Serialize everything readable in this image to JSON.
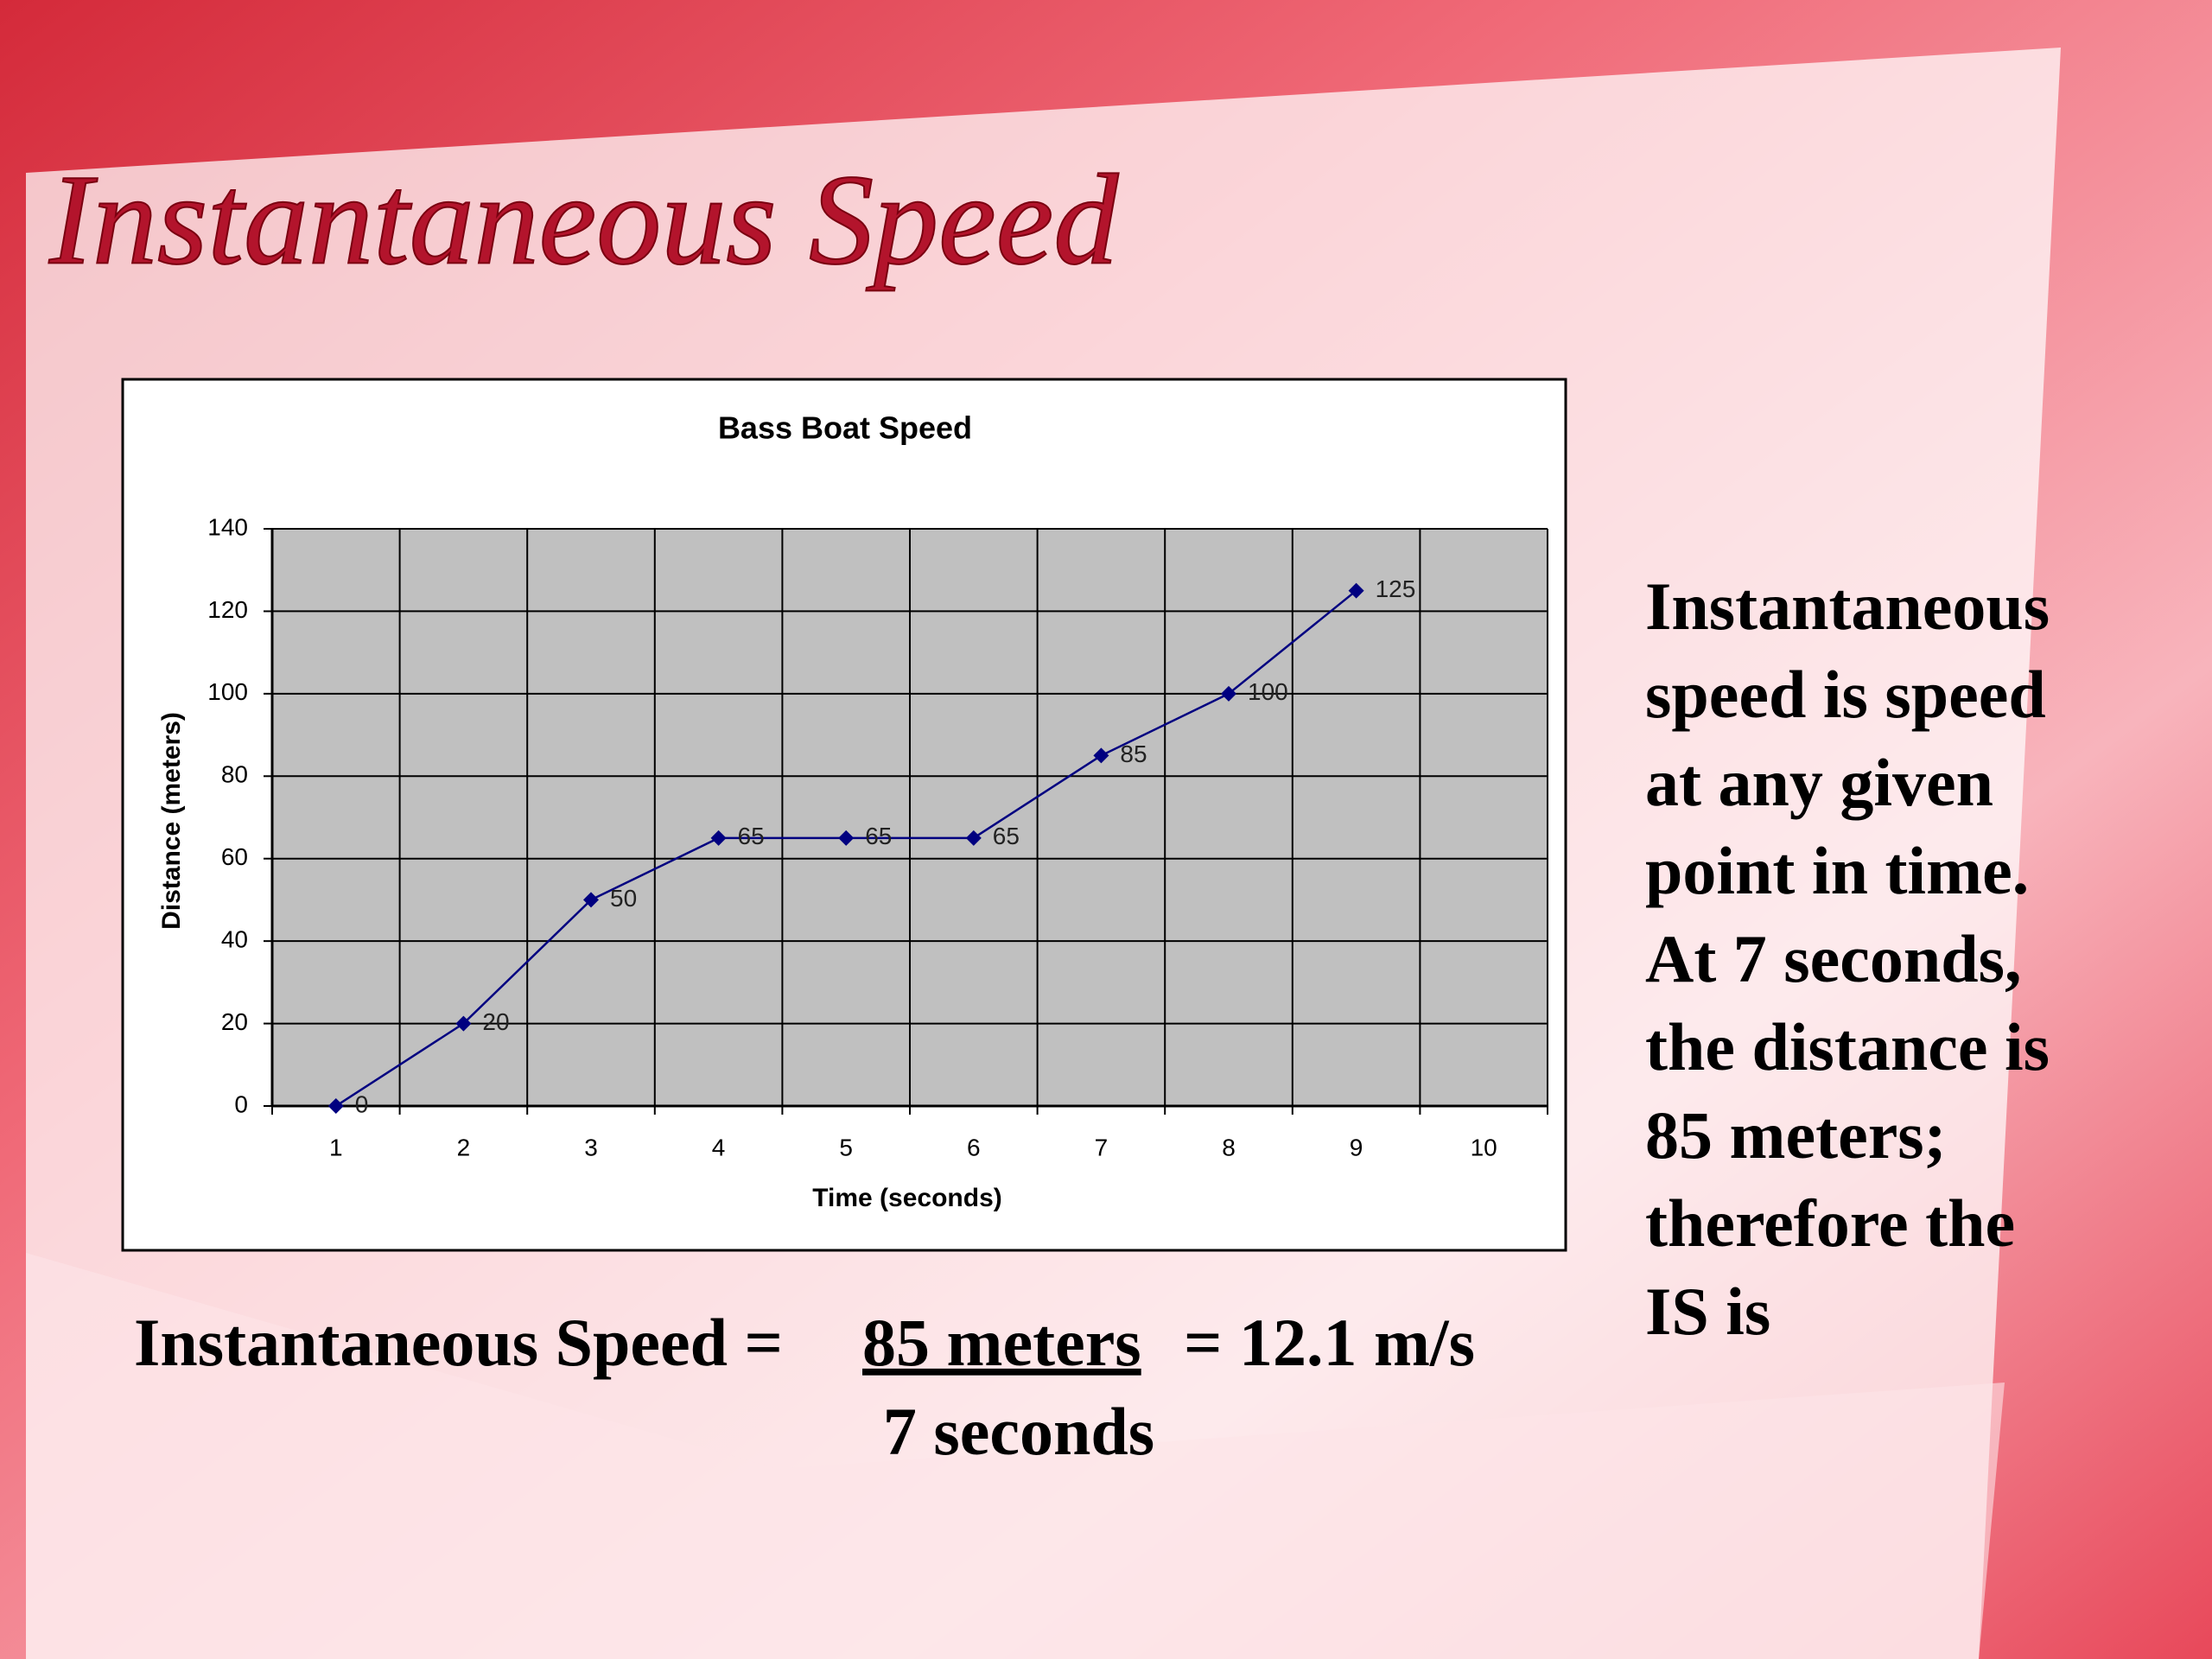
{
  "slide": {
    "title": "Instantaneous Speed",
    "body_lines": [
      "Instantaneous",
      "speed is speed",
      "at any given",
      "point in time.",
      "At 7 seconds,",
      "the distance is",
      "85 meters;",
      "therefore the",
      "IS is"
    ],
    "equation": {
      "left": "Instantaneous Speed =",
      "numerator": "85 meters",
      "right": "= 12.1 m/s",
      "denominator": "7 seconds"
    }
  },
  "chart_data": {
    "type": "line",
    "title": "Bass Boat Speed",
    "x_label": "Time (seconds)",
    "y_label": "Distance (meters)",
    "categories": [
      "1",
      "2",
      "3",
      "4",
      "5",
      "6",
      "7",
      "8",
      "9",
      "10"
    ],
    "series": [
      {
        "name": "Distance",
        "color": "#000080",
        "values": [
          0,
          20,
          50,
          65,
          65,
          65,
          85,
          100,
          125,
          null
        ]
      }
    ],
    "ylim": [
      0,
      140
    ],
    "yticks": [
      0,
      20,
      40,
      60,
      80,
      100,
      120,
      140
    ],
    "grid": true,
    "plot_background": "#c0c0c0"
  }
}
